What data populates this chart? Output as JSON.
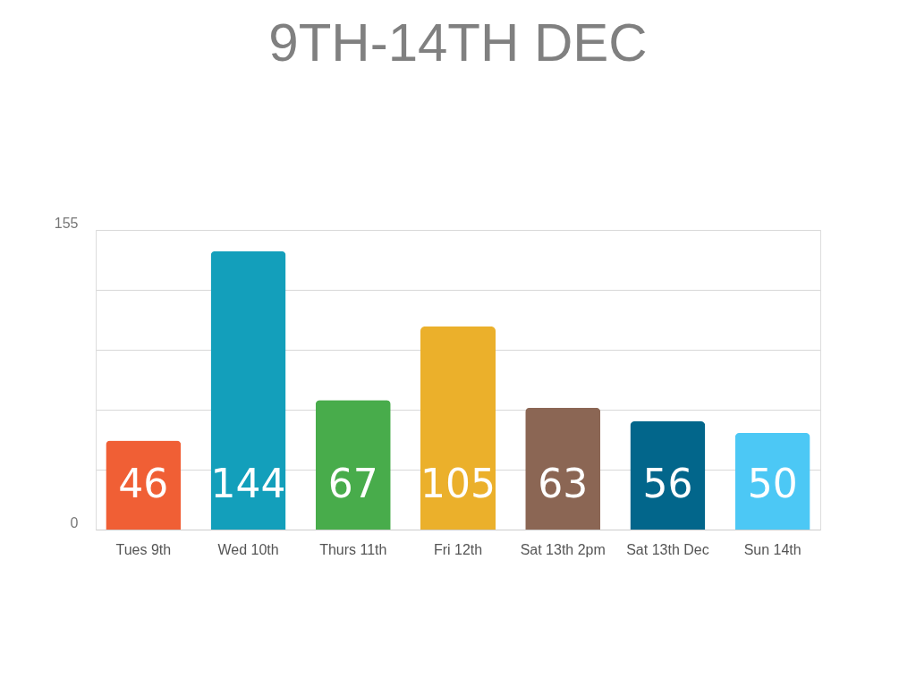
{
  "chart_data": {
    "type": "bar",
    "title": "9TH-14TH DEC",
    "categories": [
      "Tues 9th",
      "Wed 10th",
      "Thurs 11th",
      "Fri 12th",
      "Sat 13th 2pm",
      "Sat 13th Dec",
      "Sun 14th"
    ],
    "values": [
      46,
      144,
      67,
      105,
      63,
      56,
      50
    ],
    "colors": [
      "#f05f35",
      "#139fbb",
      "#48ac4b",
      "#ebb02b",
      "#8b6654",
      "#02668b",
      "#4cc8f5"
    ],
    "ylim": [
      0,
      155
    ],
    "yticks": [
      0,
      {
        "value": 31,
        "label": null
      },
      {
        "value": 62,
        "label": null
      },
      {
        "value": 93,
        "label": null
      },
      {
        "value": 124,
        "label": null
      },
      155
    ],
    "grid": "y",
    "data_labels": true
  }
}
